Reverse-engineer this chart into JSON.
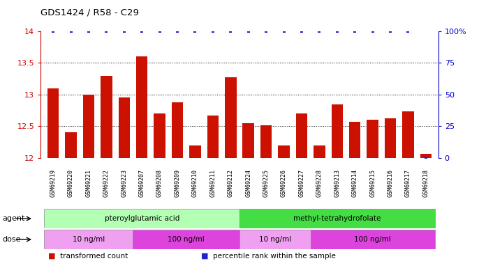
{
  "title": "GDS1424 / R58 - C29",
  "samples": [
    "GSM69219",
    "GSM69220",
    "GSM69221",
    "GSM69222",
    "GSM69223",
    "GSM69207",
    "GSM69208",
    "GSM69209",
    "GSM69210",
    "GSM69211",
    "GSM69212",
    "GSM69224",
    "GSM69225",
    "GSM69226",
    "GSM69227",
    "GSM69228",
    "GSM69213",
    "GSM69214",
    "GSM69215",
    "GSM69216",
    "GSM69217",
    "GSM69218"
  ],
  "bar_values": [
    13.1,
    12.4,
    13.0,
    13.3,
    12.95,
    13.6,
    12.7,
    12.88,
    12.2,
    12.67,
    13.27,
    12.55,
    12.52,
    12.2,
    12.7,
    12.2,
    12.85,
    12.57,
    12.6,
    12.62,
    12.73,
    12.07
  ],
  "percentile_values": [
    100,
    100,
    100,
    100,
    100,
    100,
    100,
    100,
    100,
    100,
    100,
    100,
    100,
    100,
    100,
    100,
    100,
    100,
    100,
    100,
    100,
    0
  ],
  "ylim_left": [
    12,
    14
  ],
  "ylim_right": [
    0,
    100
  ],
  "yticks_left": [
    12,
    12.5,
    13,
    13.5,
    14
  ],
  "yticks_right": [
    0,
    25,
    50,
    75,
    100
  ],
  "bar_color": "#cc1100",
  "dot_color": "#2222cc",
  "agent_groups": [
    {
      "label": "pteroylglutamic acid",
      "start": 0,
      "end": 10,
      "color": "#b3ffb3"
    },
    {
      "label": "methyl-tetrahydrofolate",
      "start": 11,
      "end": 21,
      "color": "#44dd44"
    }
  ],
  "dose_groups": [
    {
      "label": "10 ng/ml",
      "start": 0,
      "end": 4,
      "color": "#f0a0f0"
    },
    {
      "label": "100 ng/ml",
      "start": 5,
      "end": 10,
      "color": "#dd44dd"
    },
    {
      "label": "10 ng/ml",
      "start": 11,
      "end": 14,
      "color": "#f0a0f0"
    },
    {
      "label": "100 ng/ml",
      "start": 15,
      "end": 21,
      "color": "#dd44dd"
    }
  ],
  "legend_items": [
    {
      "label": "transformed count",
      "color": "#cc1100"
    },
    {
      "label": "percentile rank within the sample",
      "color": "#2222cc"
    }
  ],
  "agent_label": "agent",
  "dose_label": "dose",
  "background_color": "#ffffff",
  "grid_color": "#000000",
  "tick_color_left": "#cc0000",
  "tick_color_right": "#0000cc",
  "label_bg_color": "#dddddd"
}
